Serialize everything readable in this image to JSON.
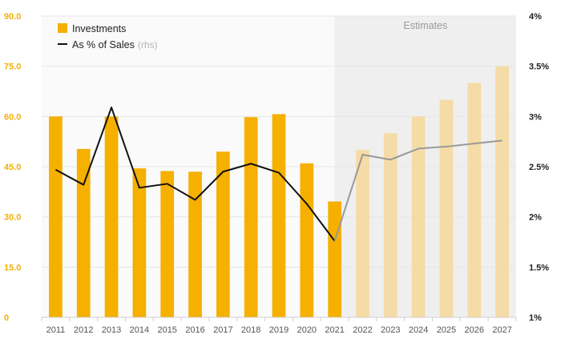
{
  "chart_data": {
    "type": "bar",
    "categories": [
      "2011",
      "2012",
      "2013",
      "2014",
      "2015",
      "2016",
      "2017",
      "2018",
      "2019",
      "2020",
      "2021",
      "2022",
      "2023",
      "2024",
      "2025",
      "2026",
      "2027"
    ],
    "series": [
      {
        "name": "Investments",
        "axis": "left",
        "kind": "bar",
        "values": [
          60.0,
          50.3,
          60.0,
          44.5,
          43.7,
          43.5,
          49.5,
          59.8,
          60.7,
          46.0,
          34.6,
          50.0,
          55.0,
          60.0,
          65.0,
          70.0,
          75.0
        ],
        "estimated_from_index": 11
      },
      {
        "name": "As % of Sales",
        "name_suffix": "(rhs)",
        "axis": "right",
        "kind": "line",
        "values": [
          2.47,
          2.32,
          3.09,
          2.29,
          2.33,
          2.17,
          2.45,
          2.53,
          2.44,
          2.13,
          1.76,
          2.62,
          2.57,
          2.68,
          2.7,
          2.73,
          2.76
        ],
        "estimated_from_index": 11
      }
    ],
    "y_left": {
      "ylim": [
        0,
        90
      ],
      "ticks": [
        "0",
        "15.0",
        "30.0",
        "45.0",
        "60.0",
        "75.0",
        "90.0"
      ],
      "tick_values": [
        0,
        15,
        30,
        45,
        60,
        75,
        90
      ]
    },
    "y_right": {
      "ylim": [
        1,
        4
      ],
      "ticks": [
        "1%",
        "1.5%",
        "2%",
        "2.5%",
        "3%",
        "3.5%",
        "4%"
      ],
      "tick_values": [
        1,
        1.5,
        2,
        2.5,
        3,
        3.5,
        4
      ]
    },
    "annotation": "Estimates",
    "legend_position": "top-left",
    "grid": true
  },
  "colors": {
    "bar": "#f5b000",
    "bar_estimate": "#f5dba6",
    "line": "#111111",
    "line_estimate": "#999999",
    "estimate_band": "#efefef",
    "plot_bg": "#fafafa",
    "grid": "#e6e6e6"
  }
}
